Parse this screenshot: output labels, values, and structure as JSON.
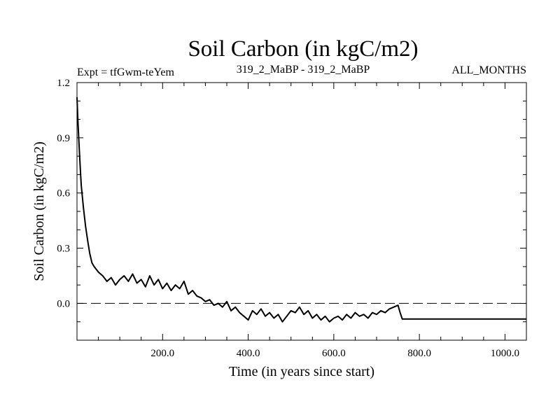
{
  "chart_data": {
    "type": "line",
    "title": "Soil Carbon (in kgC/m2)",
    "subtitle_left": "Expt = tfGwm-teYem",
    "subtitle_center": "319_2_MaBP - 319_2_MaBP",
    "subtitle_right": "ALL_MONTHS",
    "xlabel": "Time (in years since start)",
    "ylabel": "Soil Carbon (in kgC/m2)",
    "xlim": [
      0,
      1050
    ],
    "ylim": [
      -0.2,
      1.2
    ],
    "x_ticks": [
      200,
      400,
      600,
      800,
      1000
    ],
    "x_tick_labels": [
      "200.0",
      "400.0",
      "600.0",
      "800.0",
      "1000.0"
    ],
    "y_ticks": [
      0.0,
      0.3,
      0.6,
      0.9,
      1.2
    ],
    "y_tick_labels": [
      "0.0",
      "0.3",
      "0.6",
      "0.9",
      "1.2"
    ],
    "reference_line": {
      "y": 0.0,
      "style": "dashed"
    },
    "series": [
      {
        "name": "Soil Carbon",
        "x": [
          0,
          2,
          5,
          8,
          10,
          15,
          20,
          25,
          30,
          35,
          40,
          50,
          60,
          70,
          80,
          90,
          100,
          110,
          120,
          130,
          140,
          150,
          160,
          170,
          180,
          190,
          200,
          210,
          220,
          230,
          240,
          250,
          260,
          270,
          280,
          290,
          300,
          310,
          320,
          330,
          340,
          350,
          360,
          370,
          380,
          390,
          400,
          410,
          420,
          430,
          440,
          450,
          460,
          470,
          480,
          490,
          500,
          510,
          520,
          530,
          540,
          550,
          560,
          570,
          580,
          590,
          600,
          610,
          620,
          630,
          640,
          650,
          660,
          670,
          680,
          690,
          700,
          710,
          720,
          730,
          740,
          750,
          755,
          760,
          1050
        ],
        "y": [
          1.12,
          1.0,
          0.85,
          0.72,
          0.64,
          0.52,
          0.42,
          0.34,
          0.27,
          0.22,
          0.2,
          0.17,
          0.15,
          0.12,
          0.14,
          0.1,
          0.13,
          0.15,
          0.12,
          0.16,
          0.11,
          0.13,
          0.09,
          0.15,
          0.1,
          0.13,
          0.08,
          0.11,
          0.07,
          0.1,
          0.08,
          0.12,
          0.05,
          0.07,
          0.04,
          0.03,
          0.01,
          0.02,
          -0.01,
          0.0,
          -0.02,
          0.01,
          -0.04,
          -0.02,
          -0.05,
          -0.07,
          -0.09,
          -0.04,
          -0.06,
          -0.03,
          -0.07,
          -0.05,
          -0.08,
          -0.06,
          -0.1,
          -0.07,
          -0.04,
          -0.05,
          -0.02,
          -0.06,
          -0.04,
          -0.08,
          -0.06,
          -0.09,
          -0.07,
          -0.1,
          -0.08,
          -0.07,
          -0.09,
          -0.06,
          -0.08,
          -0.05,
          -0.07,
          -0.06,
          -0.08,
          -0.05,
          -0.06,
          -0.04,
          -0.05,
          -0.03,
          -0.02,
          -0.01,
          -0.05,
          -0.085,
          -0.085
        ]
      }
    ]
  }
}
